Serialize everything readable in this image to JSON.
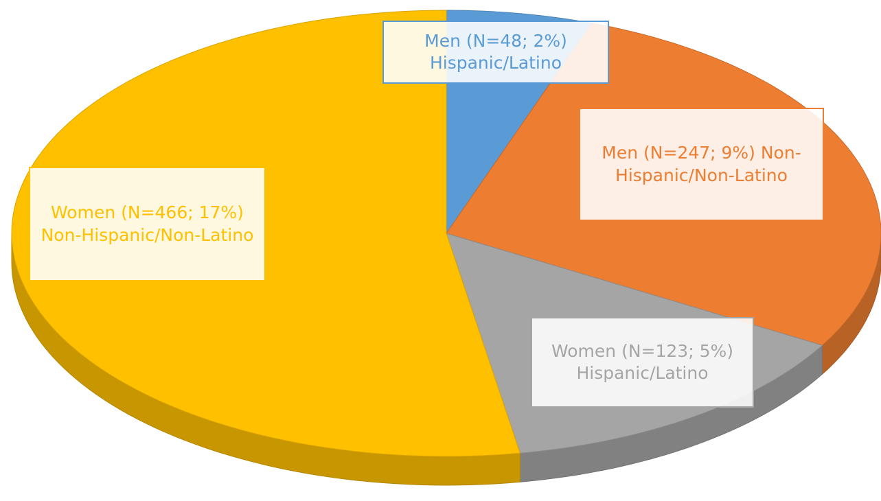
{
  "chart_data": {
    "type": "pie",
    "values": [
      48,
      247,
      123,
      466
    ],
    "value_labels": [
      "Men (N=48; 2%) Hispanic/Latino",
      "Men (N=247; 9%) Non-Hispanic/Non-Latino",
      "Women (N=123; 5%) Hispanic/Latino",
      "Women (N=466; 17%) Non-Hispanic/Non-Latino"
    ],
    "colors": [
      "#5b9bd5",
      "#ed7d31",
      "#a5a5a5",
      "#ffc000"
    ]
  }
}
